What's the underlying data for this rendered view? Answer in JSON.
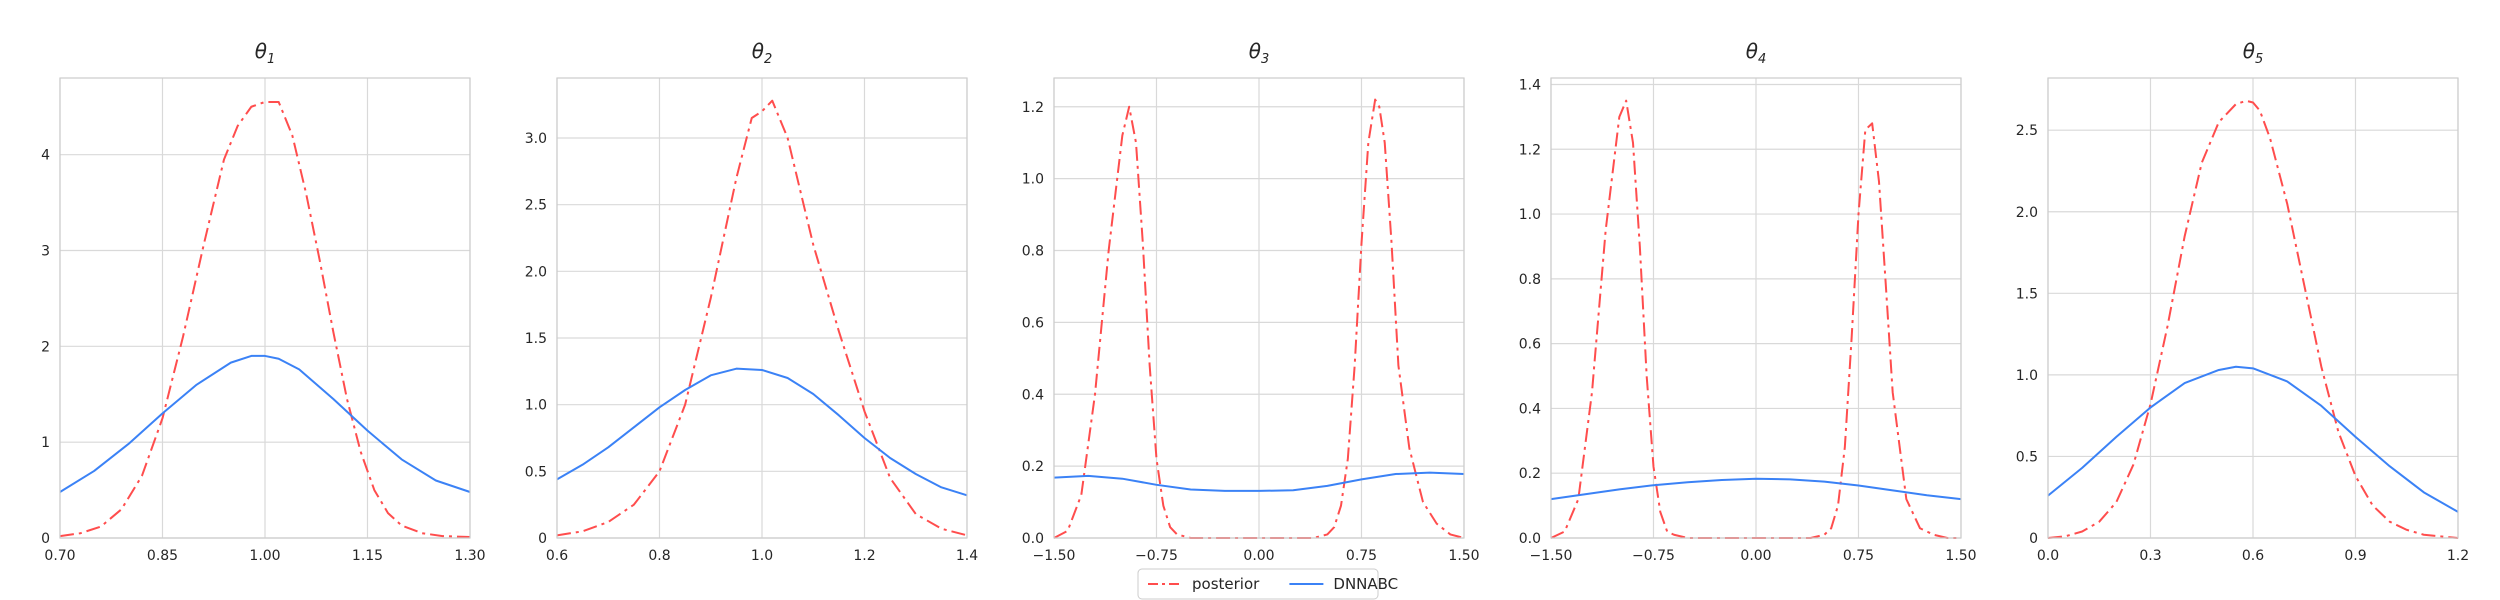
{
  "colors": {
    "posterior": "#ff4d4d",
    "dnnabc": "#3b82f6"
  },
  "legend": {
    "placement": "bottom-center",
    "items": [
      {
        "label": "posterior",
        "style": "dash-dot",
        "color": "#ff4d4d"
      },
      {
        "label": "DNNABC",
        "style": "solid",
        "color": "#3b82f6"
      }
    ]
  },
  "chart_data": [
    {
      "type": "line",
      "title_base": "θ",
      "title_sub": "1",
      "xlim": [
        0.7,
        1.3
      ],
      "ylim": [
        0,
        4.8
      ],
      "xticks": [
        0.7,
        0.85,
        1.0,
        1.15,
        1.3
      ],
      "xtick_labels": [
        "0.70",
        "0.85",
        "1.00",
        "1.15",
        "1.30"
      ],
      "yticks": [
        0,
        1,
        2,
        3,
        4
      ],
      "ytick_labels": [
        "0",
        "1",
        "2",
        "3",
        "4"
      ],
      "grid": true,
      "series": [
        {
          "name": "posterior",
          "x": [
            0.7,
            0.73,
            0.76,
            0.79,
            0.82,
            0.85,
            0.88,
            0.91,
            0.94,
            0.96,
            0.98,
            1.0,
            1.02,
            1.04,
            1.06,
            1.08,
            1.1,
            1.12,
            1.14,
            1.16,
            1.18,
            1.2,
            1.23,
            1.26,
            1.3
          ],
          "y": [
            0.02,
            0.05,
            0.12,
            0.3,
            0.65,
            1.25,
            2.1,
            3.05,
            3.95,
            4.3,
            4.5,
            4.55,
            4.55,
            4.2,
            3.6,
            2.9,
            2.15,
            1.45,
            0.9,
            0.5,
            0.26,
            0.13,
            0.05,
            0.02,
            0.01
          ]
        },
        {
          "name": "DNNABC",
          "x": [
            0.7,
            0.75,
            0.8,
            0.85,
            0.9,
            0.95,
            0.98,
            1.0,
            1.02,
            1.05,
            1.1,
            1.15,
            1.2,
            1.25,
            1.3
          ],
          "y": [
            0.48,
            0.7,
            0.98,
            1.3,
            1.6,
            1.83,
            1.9,
            1.9,
            1.87,
            1.76,
            1.45,
            1.12,
            0.82,
            0.6,
            0.48
          ]
        }
      ]
    },
    {
      "type": "line",
      "title_base": "θ",
      "title_sub": "2",
      "xlim": [
        0.6,
        1.4
      ],
      "ylim": [
        0,
        3.45
      ],
      "xticks": [
        0.6,
        0.8,
        1.0,
        1.2,
        1.4
      ],
      "xtick_labels": [
        "0.6",
        "0.8",
        "1.0",
        "1.2",
        "1.4"
      ],
      "yticks": [
        0,
        0.5,
        1.0,
        1.5,
        2.0,
        2.5,
        3.0
      ],
      "ytick_labels": [
        "0",
        "0.5",
        "1.0",
        "1.5",
        "2.0",
        "2.5",
        "3.0"
      ],
      "grid": true,
      "series": [
        {
          "name": "posterior",
          "x": [
            0.6,
            0.65,
            0.7,
            0.75,
            0.8,
            0.85,
            0.9,
            0.95,
            0.98,
            1.0,
            1.02,
            1.05,
            1.1,
            1.15,
            1.2,
            1.25,
            1.3,
            1.35,
            1.4
          ],
          "y": [
            0.02,
            0.05,
            0.12,
            0.25,
            0.5,
            1.0,
            1.8,
            2.7,
            3.15,
            3.2,
            3.28,
            3.0,
            2.2,
            1.55,
            0.95,
            0.45,
            0.18,
            0.07,
            0.02
          ]
        },
        {
          "name": "DNNABC",
          "x": [
            0.6,
            0.65,
            0.7,
            0.75,
            0.8,
            0.85,
            0.9,
            0.95,
            1.0,
            1.05,
            1.1,
            1.15,
            1.2,
            1.25,
            1.3,
            1.35,
            1.4
          ],
          "y": [
            0.44,
            0.55,
            0.68,
            0.83,
            0.98,
            1.11,
            1.22,
            1.27,
            1.26,
            1.2,
            1.08,
            0.92,
            0.75,
            0.6,
            0.48,
            0.38,
            0.32
          ]
        }
      ]
    },
    {
      "type": "line",
      "title_base": "θ",
      "title_sub": "3",
      "xlim": [
        -1.5,
        1.5
      ],
      "ylim": [
        0,
        1.28
      ],
      "xticks": [
        -1.5,
        -0.75,
        0.0,
        0.75,
        1.5
      ],
      "xtick_labels": [
        "−1.50",
        "−0.75",
        "0.00",
        "0.75",
        "1.50"
      ],
      "yticks": [
        0,
        0.2,
        0.4,
        0.6,
        0.8,
        1.0,
        1.2
      ],
      "ytick_labels": [
        "0.0",
        "0.2",
        "0.4",
        "0.6",
        "0.8",
        "1.0",
        "1.2"
      ],
      "grid": true,
      "series": [
        {
          "name": "posterior",
          "x": [
            -1.5,
            -1.4,
            -1.3,
            -1.2,
            -1.1,
            -1.0,
            -0.95,
            -0.9,
            -0.85,
            -0.8,
            -0.75,
            -0.7,
            -0.65,
            -0.6,
            -0.5,
            -0.4,
            0.0,
            0.4,
            0.5,
            0.55,
            0.6,
            0.65,
            0.7,
            0.75,
            0.8,
            0.85,
            0.88,
            0.92,
            0.97,
            1.02,
            1.1,
            1.2,
            1.3,
            1.4,
            1.5
          ],
          "y": [
            0.0,
            0.02,
            0.12,
            0.4,
            0.8,
            1.12,
            1.2,
            1.1,
            0.82,
            0.48,
            0.22,
            0.09,
            0.03,
            0.01,
            0.0,
            0.0,
            0.0,
            0.0,
            0.01,
            0.03,
            0.09,
            0.22,
            0.48,
            0.82,
            1.1,
            1.22,
            1.2,
            1.1,
            0.82,
            0.48,
            0.25,
            0.1,
            0.04,
            0.01,
            0.0
          ]
        },
        {
          "name": "DNNABC",
          "x": [
            -1.5,
            -1.25,
            -1.0,
            -0.75,
            -0.5,
            -0.25,
            0.0,
            0.25,
            0.5,
            0.75,
            1.0,
            1.25,
            1.5
          ],
          "y": [
            0.168,
            0.173,
            0.165,
            0.148,
            0.135,
            0.131,
            0.131,
            0.133,
            0.145,
            0.163,
            0.178,
            0.182,
            0.178
          ]
        }
      ]
    },
    {
      "type": "line",
      "title_base": "θ",
      "title_sub": "4",
      "xlim": [
        -1.5,
        1.5
      ],
      "ylim": [
        0,
        1.42
      ],
      "xticks": [
        -1.5,
        -0.75,
        0.0,
        0.75,
        1.5
      ],
      "xtick_labels": [
        "−1.50",
        "−0.75",
        "0.00",
        "0.75",
        "1.50"
      ],
      "yticks": [
        0,
        0.2,
        0.4,
        0.6,
        0.8,
        1.0,
        1.2,
        1.4
      ],
      "ytick_labels": [
        "0.0",
        "0.2",
        "0.4",
        "0.6",
        "0.8",
        "1.0",
        "1.2",
        "1.4"
      ],
      "grid": true,
      "series": [
        {
          "name": "posterior",
          "x": [
            -1.5,
            -1.4,
            -1.3,
            -1.2,
            -1.1,
            -1.0,
            -0.95,
            -0.9,
            -0.85,
            -0.8,
            -0.75,
            -0.7,
            -0.65,
            -0.6,
            -0.5,
            0.0,
            0.4,
            0.5,
            0.55,
            0.6,
            0.65,
            0.7,
            0.75,
            0.8,
            0.85,
            0.9,
            0.95,
            1.0,
            1.1,
            1.2,
            1.3,
            1.4,
            1.5
          ],
          "y": [
            0.0,
            0.02,
            0.12,
            0.45,
            0.95,
            1.3,
            1.35,
            1.22,
            0.9,
            0.5,
            0.22,
            0.08,
            0.02,
            0.01,
            0.0,
            0.0,
            0.0,
            0.01,
            0.03,
            0.1,
            0.28,
            0.62,
            1.0,
            1.26,
            1.28,
            1.1,
            0.78,
            0.45,
            0.12,
            0.03,
            0.01,
            0.0,
            0.0
          ]
        },
        {
          "name": "DNNABC",
          "x": [
            -1.5,
            -1.25,
            -1.0,
            -0.75,
            -0.5,
            -0.25,
            0.0,
            0.25,
            0.5,
            0.75,
            1.0,
            1.25,
            1.5
          ],
          "y": [
            0.12,
            0.135,
            0.15,
            0.163,
            0.172,
            0.179,
            0.183,
            0.181,
            0.174,
            0.162,
            0.147,
            0.132,
            0.12
          ]
        }
      ]
    },
    {
      "type": "line",
      "title_base": "θ",
      "title_sub": "5",
      "xlim": [
        0.0,
        1.2
      ],
      "ylim": [
        0,
        2.82
      ],
      "xticks": [
        0.0,
        0.3,
        0.6,
        0.9,
        1.2
      ],
      "xtick_labels": [
        "0.0",
        "0.3",
        "0.6",
        "0.9",
        "1.2"
      ],
      "yticks": [
        0,
        0.5,
        1.0,
        1.5,
        2.0,
        2.5
      ],
      "ytick_labels": [
        "0",
        "0.5",
        "1.0",
        "1.5",
        "2.0",
        "2.5"
      ],
      "grid": true,
      "series": [
        {
          "name": "posterior",
          "x": [
            0.0,
            0.05,
            0.1,
            0.15,
            0.2,
            0.25,
            0.3,
            0.35,
            0.4,
            0.45,
            0.5,
            0.55,
            0.58,
            0.6,
            0.62,
            0.65,
            0.7,
            0.75,
            0.8,
            0.85,
            0.9,
            0.95,
            1.0,
            1.05,
            1.1,
            1.2
          ],
          "y": [
            0.0,
            0.01,
            0.04,
            0.1,
            0.22,
            0.45,
            0.82,
            1.3,
            1.85,
            2.3,
            2.55,
            2.66,
            2.68,
            2.67,
            2.62,
            2.45,
            2.05,
            1.55,
            1.05,
            0.65,
            0.38,
            0.2,
            0.1,
            0.05,
            0.02,
            0.0
          ]
        },
        {
          "name": "DNNABC",
          "x": [
            0.0,
            0.1,
            0.2,
            0.3,
            0.4,
            0.5,
            0.55,
            0.6,
            0.7,
            0.8,
            0.9,
            1.0,
            1.1,
            1.2
          ],
          "y": [
            0.26,
            0.43,
            0.62,
            0.8,
            0.95,
            1.03,
            1.05,
            1.04,
            0.96,
            0.81,
            0.62,
            0.44,
            0.28,
            0.16
          ]
        }
      ]
    }
  ]
}
